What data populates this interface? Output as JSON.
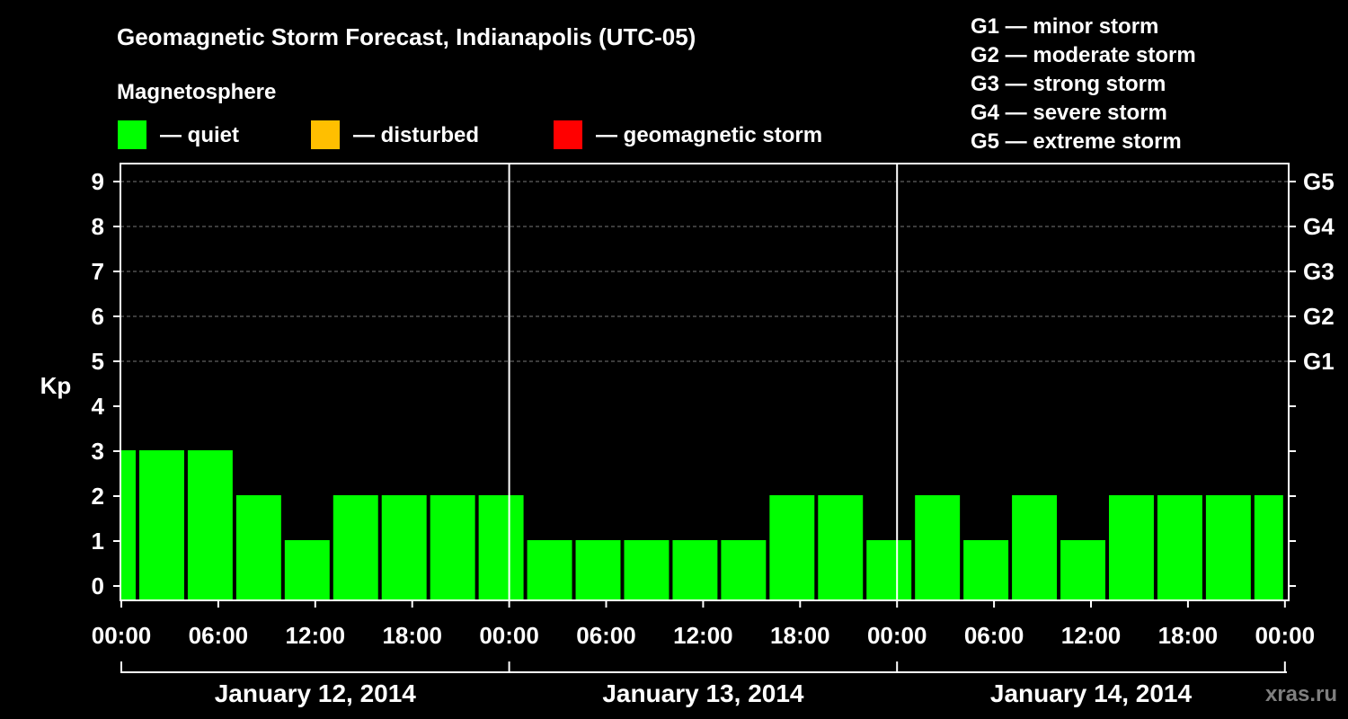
{
  "header": {
    "title": "Geomagnetic Storm Forecast, Indianapolis (UTC-05)",
    "subtitle": "Magnetosphere"
  },
  "legend": {
    "items": [
      {
        "label": "— quiet",
        "color": "#00ff00"
      },
      {
        "label": "— disturbed",
        "color": "#ffbf00"
      },
      {
        "label": "— geomagnetic storm",
        "color": "#ff0000"
      }
    ],
    "storm_scale": [
      "G1 — minor storm",
      "G2 — moderate storm",
      "G3 — strong storm",
      "G4 — severe storm",
      "G5 — extreme storm"
    ]
  },
  "watermark": "xras.ru",
  "chart_data": {
    "type": "bar",
    "ylabel": "Kp",
    "ylim": [
      0,
      9
    ],
    "yticks": [
      "0",
      "1",
      "2",
      "3",
      "4",
      "5",
      "6",
      "7",
      "8",
      "9"
    ],
    "right_ticks": [
      {
        "value": 5,
        "label": "G1"
      },
      {
        "value": 6,
        "label": "G2"
      },
      {
        "value": 7,
        "label": "G3"
      },
      {
        "value": 8,
        "label": "G4"
      },
      {
        "value": 9,
        "label": "G5"
      }
    ],
    "xticks": [
      "00:00",
      "06:00",
      "12:00",
      "18:00",
      "00:00",
      "06:00",
      "12:00",
      "18:00",
      "00:00",
      "06:00",
      "12:00",
      "18:00",
      "00:00"
    ],
    "days": [
      "January 12, 2014",
      "January 13, 2014",
      "January 14, 2014"
    ],
    "grid": true,
    "series": [
      {
        "values": [
          3,
          3,
          3,
          2,
          1,
          2,
          2,
          2,
          2,
          1,
          1,
          1,
          1,
          1,
          2,
          2,
          1,
          2,
          1,
          2,
          1,
          2,
          2,
          2,
          2
        ],
        "bar_start_hours": [
          0,
          1,
          4,
          7,
          10,
          13,
          16,
          19,
          22,
          25,
          28,
          31,
          34,
          37,
          40,
          43,
          46,
          49,
          52,
          55,
          58,
          61,
          64,
          67,
          70
        ],
        "bar_end_hours": [
          1,
          4,
          7,
          10,
          13,
          16,
          19,
          22,
          25,
          28,
          31,
          34,
          37,
          40,
          43,
          46,
          49,
          52,
          55,
          58,
          61,
          64,
          67,
          70,
          72
        ],
        "color": "#00ff00"
      }
    ]
  }
}
